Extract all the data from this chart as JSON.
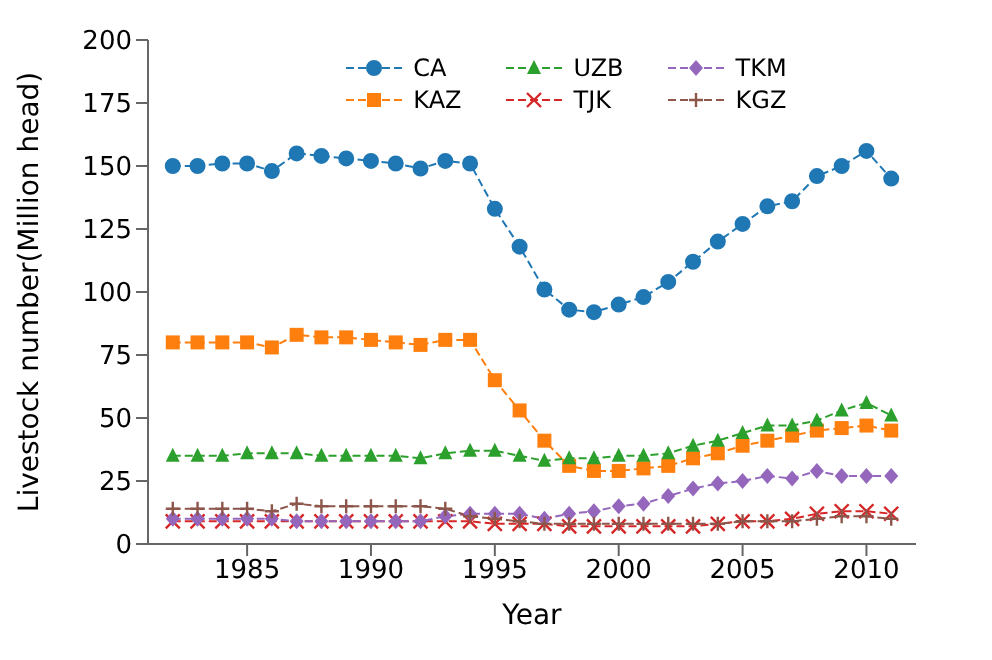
{
  "chart_data": {
    "type": "line",
    "xlabel": "Year",
    "ylabel": "Livestock number(Million head)",
    "x": [
      1982,
      1983,
      1984,
      1985,
      1986,
      1987,
      1988,
      1989,
      1990,
      1991,
      1992,
      1993,
      1994,
      1995,
      1996,
      1997,
      1998,
      1999,
      2000,
      2001,
      2002,
      2003,
      2004,
      2005,
      2006,
      2007,
      2008,
      2009,
      2010,
      2011
    ],
    "xlim": [
      1981,
      2012
    ],
    "xticks": [
      1985,
      1990,
      1995,
      2000,
      2005,
      2010
    ],
    "ylim": [
      0,
      200
    ],
    "yticks": [
      0,
      25,
      50,
      75,
      100,
      125,
      150,
      175,
      200
    ],
    "grid": false,
    "legend": "top",
    "line_style": "dashed",
    "series": [
      {
        "name": "CA",
        "color": "#1f77b4",
        "marker": "circle",
        "values": [
          150,
          150,
          151,
          151,
          148,
          155,
          154,
          153,
          152,
          151,
          149,
          152,
          151,
          133,
          118,
          101,
          93,
          92,
          95,
          98,
          104,
          112,
          120,
          127,
          134,
          136,
          146,
          150,
          156,
          145
        ]
      },
      {
        "name": "KAZ",
        "color": "#ff7f0e",
        "marker": "square",
        "values": [
          80,
          80,
          80,
          80,
          78,
          83,
          82,
          82,
          81,
          80,
          79,
          81,
          81,
          65,
          53,
          41,
          31,
          29,
          29,
          30,
          31,
          34,
          36,
          39,
          41,
          43,
          45,
          46,
          47,
          45
        ]
      },
      {
        "name": "UZB",
        "color": "#2ca02c",
        "marker": "triangle",
        "values": [
          35,
          35,
          35,
          36,
          36,
          36,
          35,
          35,
          35,
          35,
          34,
          36,
          37,
          37,
          35,
          33,
          34,
          34,
          35,
          35,
          36,
          39,
          41,
          44,
          47,
          47,
          49,
          53,
          56,
          51
        ]
      },
      {
        "name": "TJK",
        "color": "#d62728",
        "marker": "cross",
        "values": [
          9,
          9,
          9,
          9,
          9,
          9,
          9,
          9,
          9,
          9,
          9,
          9,
          9,
          8,
          8,
          8,
          7,
          7,
          7,
          7,
          7,
          7,
          8,
          9,
          9,
          10,
          12,
          13,
          13,
          12
        ]
      },
      {
        "name": "TKM",
        "color": "#9467bd",
        "marker": "diamond",
        "values": [
          10,
          10,
          10,
          10,
          10,
          9,
          9,
          9,
          9,
          9,
          9,
          11,
          12,
          12,
          12,
          10,
          12,
          13,
          15,
          16,
          19,
          22,
          24,
          25,
          27,
          26,
          29,
          27,
          27,
          27
        ]
      },
      {
        "name": "KGZ",
        "color": "#8c564b",
        "marker": "plus",
        "values": [
          14,
          14,
          14,
          14,
          13,
          16,
          15,
          15,
          15,
          15,
          15,
          14,
          11,
          10,
          9,
          8,
          8,
          8,
          8,
          8,
          8,
          8,
          8,
          9,
          9,
          9,
          10,
          11,
          11,
          10
        ]
      }
    ]
  }
}
